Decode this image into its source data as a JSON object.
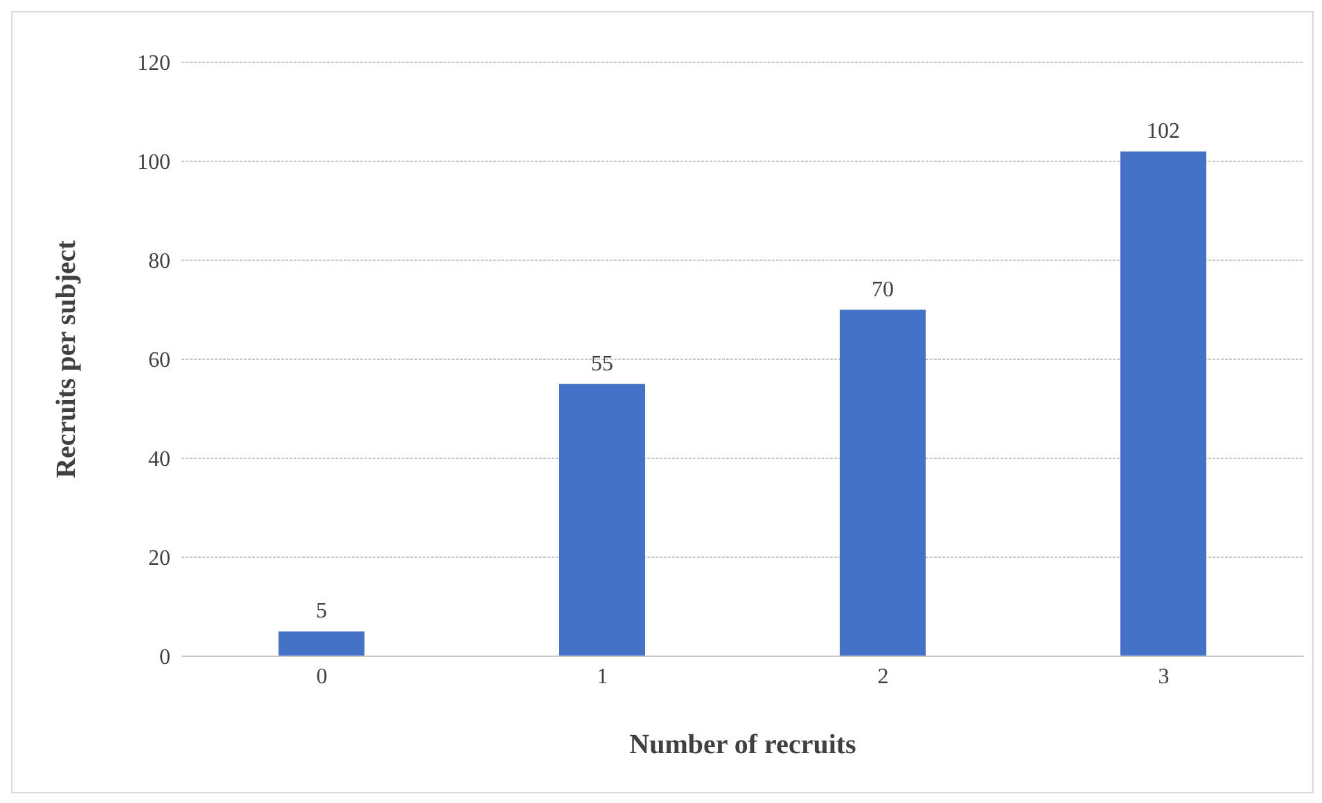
{
  "chart_data": {
    "type": "bar",
    "xlabel": "Number of recruits",
    "ylabel": "Recruits per subject",
    "categories": [
      "0",
      "1",
      "2",
      "3"
    ],
    "values": [
      5,
      55,
      70,
      102
    ],
    "color": "#4472c4",
    "ylim": [
      0,
      120
    ],
    "yticks": [
      0,
      20,
      40,
      60,
      80,
      100,
      120
    ],
    "grid": "y",
    "data_labels": true
  }
}
